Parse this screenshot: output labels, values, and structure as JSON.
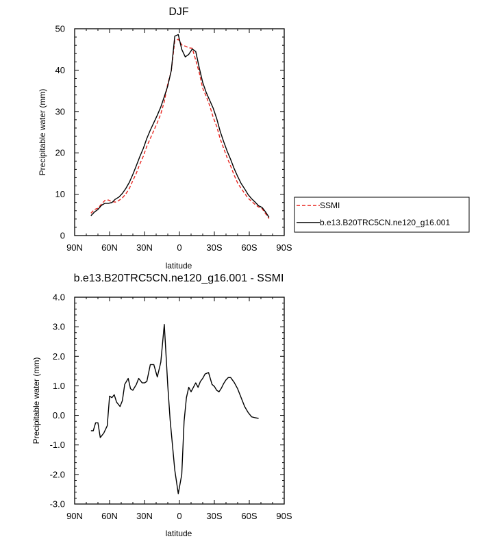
{
  "chart_data": [
    {
      "type": "line",
      "title": "DJF",
      "xlabel": "latitude",
      "ylabel": "Precipitable water (mm)",
      "xlim": [
        90,
        -90
      ],
      "ylim": [
        0,
        50
      ],
      "x_ticks": [
        90,
        60,
        30,
        0,
        -30,
        -60,
        -90
      ],
      "x_tick_labels": [
        "90N",
        "60N",
        "30N",
        "0",
        "30S",
        "60S",
        "90S"
      ],
      "y_ticks": [
        0,
        10,
        20,
        30,
        40,
        50
      ],
      "y_tick_labels": [
        "0",
        "10",
        "20",
        "30",
        "40",
        "50"
      ],
      "legend": {
        "placement": "right",
        "entries": [
          "SSMI",
          "b.e13.B20TRC5CN.ne120_g16.001"
        ]
      },
      "series": [
        {
          "name": "SSMI",
          "color": "#e8251f",
          "dash": "dashed",
          "x": [
            76,
            73,
            70,
            67,
            64,
            61,
            58,
            55,
            52,
            49,
            46,
            43,
            40,
            37,
            34,
            31,
            28,
            25,
            22,
            19,
            16,
            13,
            10,
            7,
            4,
            1,
            -2,
            -5,
            -8,
            -11,
            -14,
            -17,
            -20,
            -23,
            -26,
            -29,
            -32,
            -35,
            -38,
            -41,
            -44,
            -47,
            -50,
            -53,
            -56,
            -59,
            -62,
            -65,
            -68,
            -71,
            -74,
            -77
          ],
          "values": [
            5.4,
            6.3,
            6.6,
            7.6,
            8.5,
            8.6,
            8.2,
            8.1,
            8.5,
            9.1,
            10.1,
            11.4,
            13.3,
            15.1,
            17.3,
            19.2,
            21.6,
            23.5,
            25.4,
            27.3,
            29.4,
            32.4,
            36.7,
            39.8,
            47.1,
            47.5,
            46.1,
            45.8,
            45.4,
            45.3,
            42.4,
            39.4,
            35.6,
            33.7,
            31.4,
            28.6,
            26.4,
            23.4,
            21.1,
            18.8,
            16.8,
            14.6,
            12.7,
            11.4,
            10.2,
            9.0,
            8.3,
            7.5,
            6.9,
            6.5,
            5.3,
            4.1
          ]
        },
        {
          "name": "b.e13.B20TRC5CN.ne120_g16.001",
          "color": "#000000",
          "dash": "solid",
          "x": [
            76,
            73,
            70,
            67,
            64,
            61,
            58,
            55,
            52,
            49,
            46,
            43,
            40,
            37,
            34,
            31,
            28,
            25,
            22,
            19,
            16,
            13,
            10,
            7,
            4,
            1,
            -2,
            -5,
            -8,
            -11,
            -14,
            -17,
            -20,
            -23,
            -26,
            -29,
            -32,
            -35,
            -38,
            -41,
            -44,
            -47,
            -50,
            -53,
            -56,
            -59,
            -62,
            -65,
            -68,
            -71,
            -74,
            -77
          ],
          "values": [
            4.8,
            5.7,
            6.3,
            7.3,
            7.8,
            7.8,
            8.0,
            8.8,
            9.3,
            10.2,
            11.4,
            12.9,
            14.8,
            16.9,
            19.1,
            21.1,
            23.5,
            25.5,
            27.3,
            29.1,
            31.1,
            33.6,
            36.2,
            39.9,
            48.2,
            48.6,
            45.0,
            43.2,
            43.8,
            45.1,
            44.5,
            40.6,
            37.0,
            34.6,
            32.7,
            30.8,
            28.3,
            25.2,
            22.7,
            20.4,
            18.4,
            16.2,
            14.3,
            12.6,
            11.3,
            9.9,
            8.9,
            8.1,
            7.2,
            6.8,
            5.7,
            4.4
          ]
        }
      ]
    },
    {
      "type": "line",
      "title": "b.e13.B20TRC5CN.ne120_g16.001 - SSMI",
      "xlabel": "latitude",
      "ylabel": "Precipitable water (mm)",
      "xlim": [
        90,
        -90
      ],
      "ylim": [
        -3,
        4
      ],
      "x_ticks": [
        90,
        60,
        30,
        0,
        -30,
        -60,
        -90
      ],
      "x_tick_labels": [
        "90N",
        "60N",
        "30N",
        "0",
        "30S",
        "60S",
        "90S"
      ],
      "y_ticks": [
        -3,
        -2,
        -1,
        0,
        1,
        2,
        3,
        4
      ],
      "y_tick_labels": [
        "-3.0",
        "-2.0",
        "-1.0",
        "0.0",
        "1.0",
        "2.0",
        "3.0",
        "4.0"
      ],
      "series": [
        {
          "color": "#000000",
          "dash": "solid",
          "x": [
            76,
            74,
            72,
            70,
            68,
            65,
            62,
            60,
            58,
            56,
            54,
            51,
            49,
            47,
            44,
            42,
            40,
            37,
            35,
            32,
            30,
            28,
            25,
            22,
            19,
            16,
            13,
            10,
            8,
            4,
            1,
            -2,
            -4,
            -6,
            -8,
            -10,
            -12,
            -14,
            -16,
            -18,
            -20,
            -22,
            -25,
            -28,
            -30,
            -32,
            -34,
            -36,
            -38,
            -40,
            -42,
            -44,
            -47,
            -50,
            -52,
            -54,
            -56,
            -59,
            -62,
            -65,
            -68
          ],
          "values": [
            -0.52,
            -0.52,
            -0.25,
            -0.25,
            -0.75,
            -0.6,
            -0.35,
            0.65,
            0.6,
            0.7,
            0.45,
            0.3,
            0.5,
            1.05,
            1.25,
            0.9,
            0.85,
            1.05,
            1.25,
            1.1,
            1.1,
            1.15,
            1.72,
            1.72,
            1.3,
            1.8,
            3.08,
            1.0,
            -0.15,
            -1.85,
            -2.65,
            -2.0,
            -0.2,
            0.6,
            0.95,
            0.8,
            0.95,
            1.1,
            0.95,
            1.15,
            1.25,
            1.4,
            1.45,
            1.05,
            0.98,
            0.85,
            0.8,
            0.92,
            1.08,
            1.2,
            1.28,
            1.28,
            1.12,
            0.9,
            0.7,
            0.5,
            0.3,
            0.1,
            -0.05,
            -0.08,
            -0.1
          ]
        }
      ]
    }
  ]
}
